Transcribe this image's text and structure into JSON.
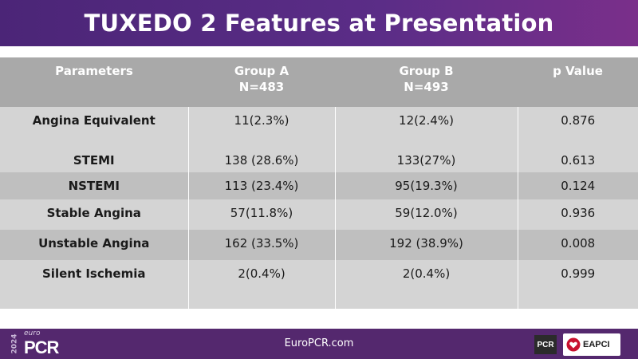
{
  "slide": {
    "title": "TUXEDO 2 Features at Presentation"
  },
  "table": {
    "headers": [
      {
        "line1": "Parameters",
        "line2": ""
      },
      {
        "line1": "Group A",
        "line2": "N=483"
      },
      {
        "line1": "Group B",
        "line2": "N=493"
      },
      {
        "line1": "p Value",
        "line2": ""
      }
    ],
    "rows": [
      {
        "parameter": "Angina Equivalent",
        "group_a": "11(2.3%)",
        "group_b": "12(2.4%)",
        "p_value": "0.876"
      },
      {
        "parameter": "STEMI",
        "group_a": "138 (28.6%)",
        "group_b": "133(27%)",
        "p_value": "0.613"
      },
      {
        "parameter": "NSTEMI",
        "group_a": "113 (23.4%)",
        "group_b": "95(19.3%)",
        "p_value": "0.124"
      },
      {
        "parameter": "Stable Angina",
        "group_a": "57(11.8%)",
        "group_b": "59(12.0%)",
        "p_value": "0.936"
      },
      {
        "parameter": "Unstable Angina",
        "group_a": "162 (33.5%)",
        "group_b": "192 (38.9%)",
        "p_value": "0.008"
      },
      {
        "parameter": "Silent Ischemia",
        "group_a": "2(0.4%)",
        "group_b": "2(0.4%)",
        "p_value": "0.999"
      }
    ]
  },
  "footer": {
    "year": "2024",
    "euro": "euro",
    "pcr": "PCR",
    "url": "EuroPCR.com",
    "badge_pcr": "PCR",
    "badge_eapci": "EAPCI"
  },
  "colors": {
    "title_bar": "#5b2d87",
    "footer": "#54286e",
    "header_bg": "#a9a9a9",
    "row_light": "#d4d4d4",
    "row_dark": "#bfbfbf"
  }
}
